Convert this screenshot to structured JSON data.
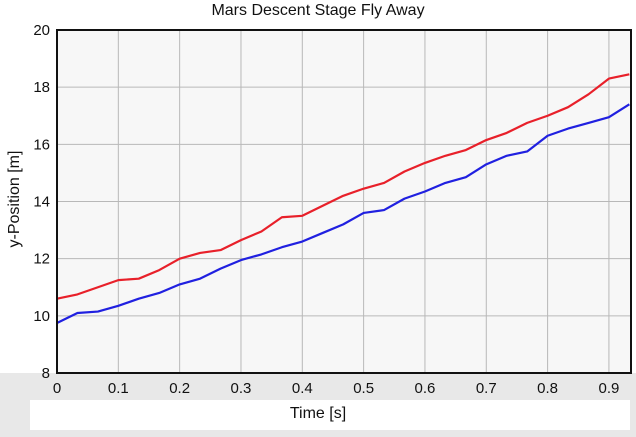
{
  "chart_data": {
    "type": "line",
    "title": "Mars Descent Stage Fly Away",
    "xlabel": "Time [s]",
    "ylabel": "y-Position [m]",
    "xlim": [
      0,
      0.936
    ],
    "ylim": [
      8,
      20
    ],
    "xticks": [
      "0",
      "0.1",
      "0.2",
      "0.3",
      "0.4",
      "0.5",
      "0.6",
      "0.7",
      "0.8",
      "0.9"
    ],
    "yticks": [
      "8",
      "10",
      "12",
      "14",
      "16",
      "18",
      "20"
    ],
    "grid": true,
    "x": [
      0,
      0.0333,
      0.0667,
      0.1,
      0.1333,
      0.1667,
      0.2,
      0.2333,
      0.2667,
      0.3,
      0.3333,
      0.3667,
      0.4,
      0.4333,
      0.4667,
      0.5,
      0.5333,
      0.5667,
      0.6,
      0.6333,
      0.6667,
      0.7,
      0.7333,
      0.7667,
      0.8,
      0.8333,
      0.8667,
      0.9,
      0.9333
    ],
    "series": [
      {
        "name": "red",
        "color": "#e8202a",
        "values": [
          10.6,
          10.75,
          11.0,
          11.25,
          11.3,
          11.6,
          12.0,
          12.2,
          12.3,
          12.65,
          12.95,
          13.45,
          13.5,
          13.85,
          14.2,
          14.45,
          14.65,
          15.05,
          15.35,
          15.6,
          15.8,
          16.15,
          16.4,
          16.75,
          17.0,
          17.3,
          17.75,
          18.3,
          18.45
        ]
      },
      {
        "name": "blue",
        "color": "#2020e0",
        "values": [
          9.75,
          10.1,
          10.15,
          10.35,
          10.6,
          10.8,
          11.1,
          11.3,
          11.65,
          11.95,
          12.15,
          12.4,
          12.6,
          12.9,
          13.2,
          13.6,
          13.7,
          14.1,
          14.35,
          14.65,
          14.85,
          15.3,
          15.6,
          15.75,
          16.3,
          16.55,
          16.75,
          16.95,
          17.4
        ]
      }
    ]
  }
}
